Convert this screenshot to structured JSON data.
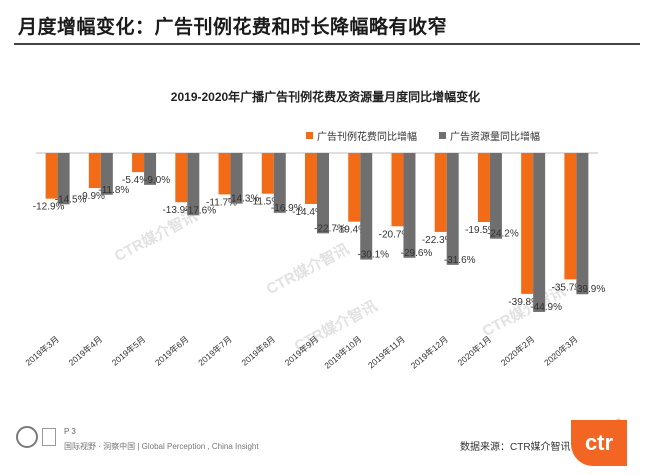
{
  "page": {
    "title": "月度增幅变化：广告刊例花费和时长降幅略有收窄",
    "page_number": "P 3",
    "footer_tagline": "国际视野 · 洞察中国 | Global Perception , China Insight",
    "source": "数据来源：CTR媒介智讯",
    "watermark": "CTR媒介智讯",
    "logo_text": "ctr",
    "logo_mark": "®"
  },
  "colors": {
    "orange": "#f26c17",
    "gray": "#6f6f6f",
    "text": "#333333"
  },
  "chart_data": {
    "type": "bar",
    "title": "2019-2020年广播广告刊例花费及资源量月度同比增幅变化",
    "categories": [
      "2019年3月",
      "2019年4月",
      "2019年5月",
      "2019年6月",
      "2019年7月",
      "2019年8月",
      "2019年9月",
      "2019年10月",
      "2019年11月",
      "2019年12月",
      "2020年1月",
      "2020年2月",
      "2020年3月"
    ],
    "series": [
      {
        "name": "广告刊例花费同比增幅",
        "color": "#f26c17",
        "values": [
          -12.9,
          -9.9,
          -5.4,
          -13.9,
          -11.7,
          -11.5,
          -14.4,
          -19.4,
          -20.7,
          -22.3,
          -19.5,
          -39.8,
          -35.7
        ],
        "labels": [
          "-12.9%",
          "-9.9%",
          "-5.4%",
          "-13.9%",
          "-11.7%",
          "-11.5%",
          "-14.4%",
          "-19.4%",
          "-20.7%",
          "-22.3%",
          "-19.5%",
          "-39.8%",
          "-35.7%"
        ]
      },
      {
        "name": "广告资源量同比增幅",
        "color": "#6f6f6f",
        "values": [
          -14.5,
          -11.8,
          -9.0,
          -17.6,
          -14.3,
          -16.9,
          -22.7,
          -30.1,
          -29.6,
          -31.6,
          -24.2,
          -44.9,
          -39.9
        ],
        "labels": [
          "-14.5%",
          "-11.8%",
          "-9.0%",
          "-17.6%",
          "-14.3%",
          "-16.9%",
          "-22.7%",
          "-30.1%",
          "-29.6%",
          "-31.6%",
          "-24.2%",
          "-44.9%",
          "-39.9%"
        ]
      }
    ],
    "ylim": [
      -50,
      0
    ],
    "grid": false,
    "legend_position": "top-right"
  }
}
